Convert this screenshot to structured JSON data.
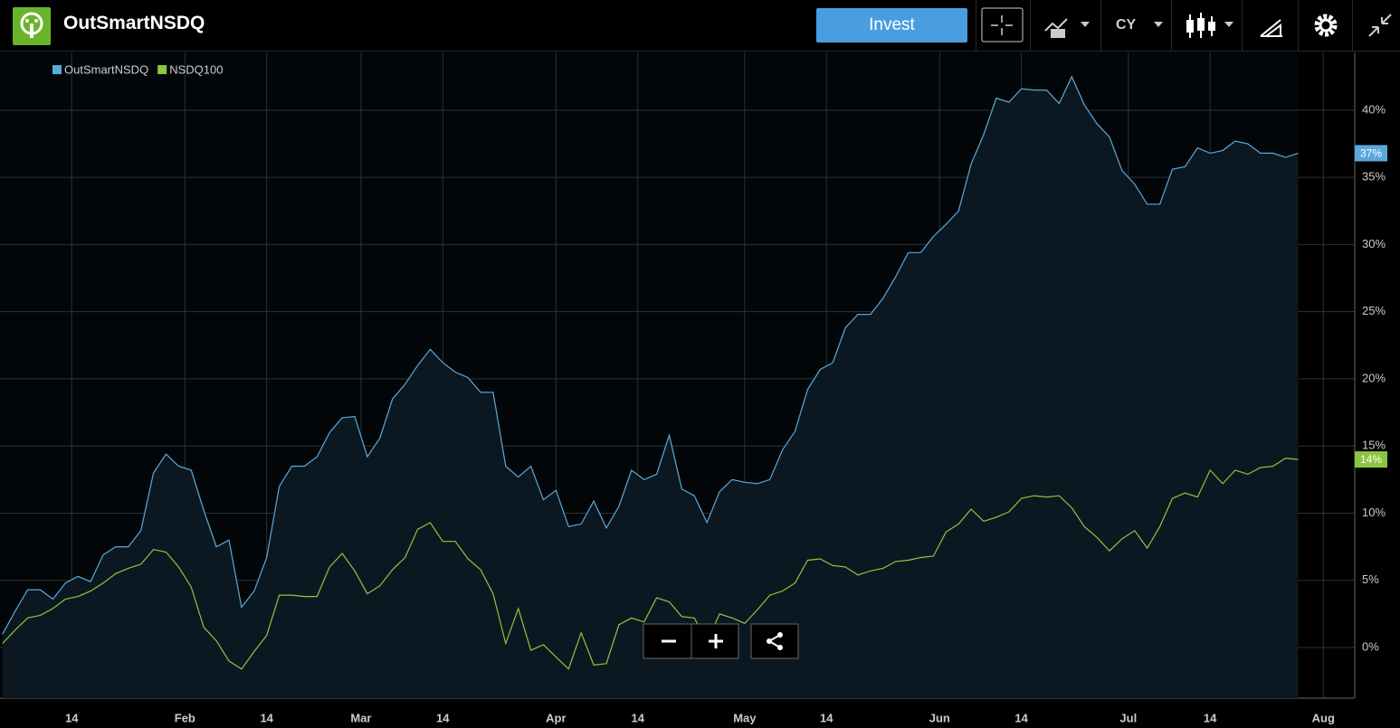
{
  "header": {
    "title": "OutSmartNSDQ",
    "invest_button": "Invest",
    "period": "CY"
  },
  "chart_data": {
    "type": "line",
    "x": [
      3,
      5,
      7,
      9,
      11,
      13,
      15,
      17,
      19,
      21,
      23,
      25,
      27,
      29,
      31,
      33,
      35,
      37,
      39,
      41,
      43,
      45,
      47,
      49,
      51,
      53,
      55,
      57,
      59,
      61,
      63,
      65,
      67,
      69,
      71,
      73,
      75,
      77,
      79,
      81,
      83,
      85,
      87,
      89,
      91,
      93,
      95,
      97,
      99,
      101,
      103,
      105,
      107,
      109,
      111,
      113,
      115,
      117,
      119,
      121,
      123,
      125,
      127,
      129,
      131,
      133,
      135,
      137,
      139,
      141,
      143,
      145,
      147,
      149,
      151,
      153,
      155,
      157,
      159,
      161,
      163,
      165,
      167,
      169,
      171,
      173,
      175,
      177,
      179,
      181,
      183,
      185,
      187,
      189,
      191,
      193,
      195,
      197,
      199,
      201,
      203,
      205,
      207,
      209
    ],
    "series": [
      {
        "name": "OutSmartNSDQ",
        "color": "#5aa9dc",
        "end_label": "37%",
        "values": [
          1.0,
          2.7,
          4.3,
          4.3,
          3.6,
          4.8,
          5.3,
          4.9,
          6.9,
          7.5,
          7.5,
          8.7,
          13.0,
          14.4,
          13.5,
          13.2,
          10.2,
          7.5,
          8.0,
          3.0,
          4.2,
          6.7,
          12.0,
          13.5,
          13.5,
          14.2,
          16.0,
          17.1,
          17.2,
          14.2,
          15.6,
          18.5,
          19.6,
          21.0,
          22.2,
          21.2,
          20.5,
          20.1,
          19.0,
          19.0,
          13.5,
          12.7,
          13.5,
          11.0,
          11.7,
          9.0,
          9.2,
          10.9,
          8.9,
          10.5,
          13.2,
          12.5,
          12.9,
          15.8,
          11.8,
          11.3,
          9.3,
          11.6,
          12.5,
          12.3,
          12.2,
          12.5,
          14.7,
          16.1,
          19.2,
          20.7,
          21.2,
          23.8,
          24.8,
          24.8,
          26.0,
          27.6,
          29.4,
          29.4,
          30.6,
          31.5,
          32.5,
          36.0,
          38.2,
          40.9,
          40.6,
          41.6,
          41.5,
          41.5,
          40.5,
          42.5,
          40.4,
          39.0,
          38.0,
          35.5,
          34.5,
          33.0,
          33.0,
          35.6,
          35.8,
          37.2,
          36.8,
          37.0,
          37.7,
          37.5,
          36.8,
          36.8,
          36.5,
          36.8
        ]
      },
      {
        "name": "NSDQ100",
        "color": "#8cc63f",
        "end_label": "14%",
        "values": [
          0.3,
          1.3,
          2.2,
          2.4,
          2.9,
          3.6,
          3.8,
          4.2,
          4.8,
          5.5,
          5.9,
          6.2,
          7.3,
          7.1,
          6.0,
          4.5,
          1.5,
          0.5,
          -1.0,
          -1.6,
          -0.3,
          0.9,
          3.9,
          3.9,
          3.8,
          3.8,
          6.0,
          7.0,
          5.7,
          4.0,
          4.6,
          5.8,
          6.7,
          8.8,
          9.3,
          7.9,
          7.9,
          6.6,
          5.8,
          4.0,
          0.3,
          2.9,
          -0.2,
          0.2,
          -0.7,
          -1.6,
          1.1,
          -1.3,
          -1.2,
          1.7,
          2.2,
          1.9,
          3.7,
          3.4,
          2.3,
          2.2,
          0.4,
          2.5,
          2.2,
          1.8,
          2.8,
          3.9,
          4.2,
          4.8,
          6.5,
          6.6,
          6.1,
          6.0,
          5.4,
          5.7,
          5.9,
          6.4,
          6.5,
          6.7,
          6.8,
          8.6,
          9.2,
          10.3,
          9.4,
          9.7,
          10.1,
          11.1,
          11.3,
          11.2,
          11.3,
          10.4,
          9.0,
          8.2,
          7.2,
          8.1,
          8.7,
          7.4,
          9.0,
          11.1,
          11.5,
          11.2,
          13.2,
          12.2,
          13.2,
          12.9,
          13.4,
          13.5,
          14.1,
          14.0
        ]
      }
    ],
    "xlim": [
      2.6,
      218
    ],
    "xticks": [
      {
        "value": 14,
        "label": "14"
      },
      {
        "value": 32,
        "label": "Feb"
      },
      {
        "value": 45,
        "label": "14"
      },
      {
        "value": 60,
        "label": "Mar"
      },
      {
        "value": 73,
        "label": "14"
      },
      {
        "value": 91,
        "label": "Apr"
      },
      {
        "value": 104,
        "label": "14"
      },
      {
        "value": 121,
        "label": "May"
      },
      {
        "value": 134,
        "label": "14"
      },
      {
        "value": 152,
        "label": "Jun"
      },
      {
        "value": 165,
        "label": "14"
      },
      {
        "value": 182,
        "label": "Jul"
      },
      {
        "value": 195,
        "label": "14"
      },
      {
        "value": 213,
        "label": "Aug"
      }
    ],
    "ylim": [
      -3.77,
      44.3
    ],
    "yticks": [
      {
        "value": 0,
        "label": "0%"
      },
      {
        "value": 5,
        "label": "5%"
      },
      {
        "value": 10,
        "label": "10%"
      },
      {
        "value": 15,
        "label": "15%"
      },
      {
        "value": 20,
        "label": "20%"
      },
      {
        "value": 25,
        "label": "25%"
      },
      {
        "value": 30,
        "label": "30%"
      },
      {
        "value": 35,
        "label": "35%"
      },
      {
        "value": 40,
        "label": "40%"
      }
    ],
    "grid": true,
    "legend": "top-left",
    "area_under_first": true
  }
}
